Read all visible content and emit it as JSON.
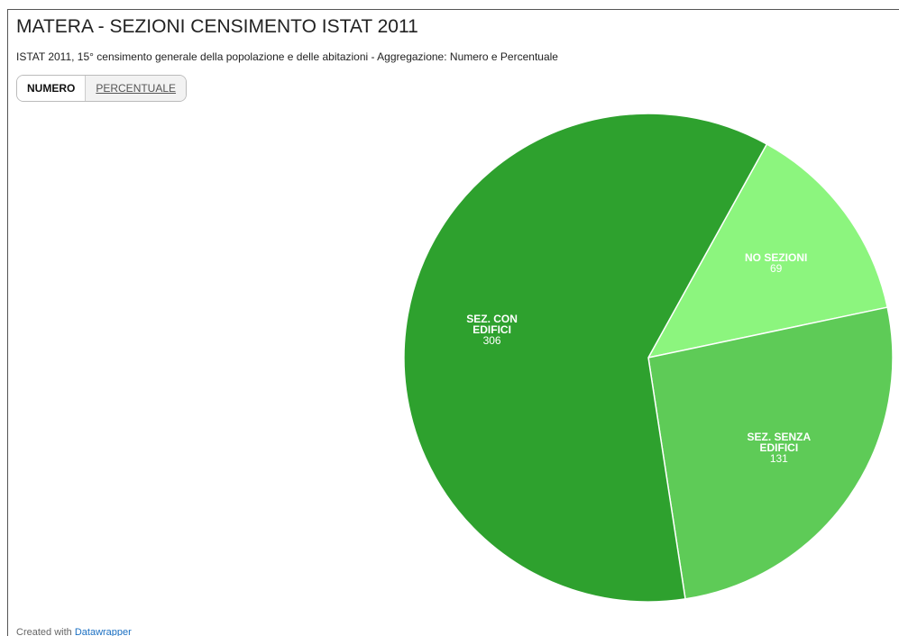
{
  "chart_data": {
    "type": "pie",
    "title": "MATERA - SEZIONI CENSIMENTO ISTAT 2011",
    "subtitle": "ISTAT 2011, 15° censimento generale della popolazione e delle abitazioni - Aggregazione: Numero e Percentuale",
    "buttons": [
      "NUMERO",
      "PERCENTUALE"
    ],
    "categories": [
      "NO SEZIONI",
      "SEZ. SENZA EDIFICI",
      "SEZ. CON EDIFICI"
    ],
    "values": [
      69,
      131,
      306
    ],
    "colors": [
      "#8cf57e",
      "#5ecb57",
      "#2ea12e"
    ],
    "footer": {
      "text": "Created with",
      "link": "Datawrapper"
    }
  }
}
